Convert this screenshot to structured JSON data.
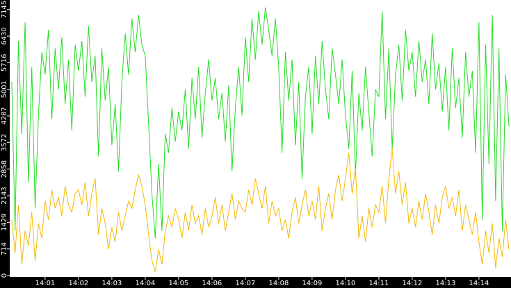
{
  "chart_data": {
    "type": "line",
    "x": [
      0,
      0.1,
      0.2,
      0.3,
      0.4,
      0.5,
      0.6,
      0.7,
      0.8,
      0.9,
      1,
      1.1,
      1.2,
      1.3,
      1.4,
      1.5,
      1.6,
      1.7,
      1.8,
      1.9,
      2,
      2.1,
      2.2,
      2.3,
      2.4,
      2.5,
      2.6,
      2.7,
      2.8,
      2.9,
      3,
      3.1,
      3.2,
      3.3,
      3.4,
      3.5,
      3.6,
      3.7,
      3.8,
      3.9,
      4,
      4.1,
      4.2,
      4.3,
      4.4,
      4.5,
      4.6,
      4.7,
      4.8,
      4.9,
      5,
      5.1,
      5.2,
      5.3,
      5.4,
      5.5,
      5.6,
      5.7,
      5.8,
      5.9,
      6,
      6.1,
      6.2,
      6.3,
      6.4,
      6.5,
      6.6,
      6.7,
      6.8,
      6.9,
      7,
      7.1,
      7.2,
      7.3,
      7.4,
      7.5,
      7.6,
      7.7,
      7.8,
      7.9,
      8,
      8.1,
      8.2,
      8.3,
      8.4,
      8.5,
      8.6,
      8.7,
      8.8,
      8.9,
      9,
      9.1,
      9.2,
      9.3,
      9.4,
      9.5,
      9.6,
      9.7,
      9.8,
      9.9,
      10,
      10.1,
      10.2,
      10.3,
      10.4,
      10.5,
      10.6,
      10.7,
      10.8,
      10.9,
      11,
      11.1,
      11.2,
      11.3,
      11.4,
      11.5,
      11.6,
      11.7,
      11.8,
      11.9,
      12,
      12.1,
      12.2,
      12.3,
      12.4,
      12.5,
      12.6,
      12.7,
      12.8,
      12.9,
      13,
      13.1,
      13.2,
      13.3,
      13.4,
      13.5,
      13.6,
      13.7,
      13.8,
      13.9,
      14,
      14.1,
      14.2,
      14.3,
      14.4,
      14.5,
      14.6,
      14.7,
      14.8,
      14.9
    ],
    "series": [
      {
        "color": "#22dd22",
        "values": [
          5200,
          1200,
          6300,
          3800,
          6800,
          2500,
          5600,
          1800,
          4300,
          6000,
          5400,
          6600,
          4200,
          6100,
          5000,
          6400,
          4600,
          5800,
          3900,
          6200,
          5500,
          6300,
          4800,
          6700,
          5200,
          5900,
          3200,
          6100,
          4700,
          5600,
          3500,
          4600,
          2800,
          5200,
          6500,
          5400,
          6900,
          6000,
          7000,
          6200,
          5900,
          4100,
          2200,
          1000,
          3000,
          1200,
          3800,
          3300,
          4500,
          3600,
          4400,
          3900,
          5000,
          3400,
          5300,
          4200,
          5600,
          3700,
          4900,
          5800,
          4700,
          5300,
          4200,
          4900,
          3600,
          5100,
          2800,
          4500,
          5600,
          4300,
          6400,
          5200,
          6900,
          5800,
          7100,
          6200,
          7200,
          6600,
          5900,
          6900,
          5600,
          3300,
          6000,
          4700,
          5800,
          3500,
          5200,
          2600,
          4800,
          5600,
          3800,
          5900,
          4600,
          6300,
          5000,
          4200,
          6100,
          5400,
          4600,
          5800,
          4300,
          3400,
          5500,
          2700,
          4900,
          3900,
          5600,
          4400,
          3200,
          5000,
          4800,
          7100,
          4200,
          6100,
          3400,
          5400,
          6200,
          4700,
          6600,
          5500,
          6000,
          4800,
          6300,
          5200,
          5800,
          4600,
          6500,
          5000,
          5700,
          4400,
          5600,
          3900,
          6100,
          4500,
          5300,
          3700,
          6000,
          4800,
          5500,
          3300,
          6800,
          1500,
          6200,
          3000,
          7000,
          2000,
          6100,
          1200,
          5400,
          4000
        ]
      },
      {
        "color": "#f5b800",
        "values": [
          1500,
          600,
          1900,
          300,
          1200,
          800,
          1700,
          400,
          1400,
          1000,
          2000,
          1500,
          2300,
          1800,
          2100,
          1600,
          2400,
          1900,
          1700,
          2200,
          2300,
          1900,
          2500,
          1600,
          2200,
          2600,
          1100,
          1800,
          1400,
          700,
          1300,
          900,
          1700,
          1200,
          1600,
          2000,
          1800,
          2300,
          2700,
          2400,
          1900,
          1100,
          400,
          100,
          700,
          300,
          1200,
          1600,
          1300,
          1800,
          1500,
          1000,
          1700,
          1200,
          1900,
          1400,
          1600,
          1100,
          1800,
          1300,
          1600,
          2100,
          1400,
          1900,
          1200,
          1700,
          2200,
          1500,
          2000,
          1800,
          1700,
          2300,
          1900,
          2600,
          2200,
          1800,
          2400,
          1400,
          2000,
          1600,
          1800,
          1200,
          1500,
          1000,
          1700,
          2100,
          1400,
          1900,
          2300,
          1600,
          2000,
          1500,
          2400,
          1200,
          1800,
          2200,
          1500,
          2300,
          2700,
          2000,
          2600,
          3300,
          2200,
          2900,
          1000,
          1600,
          900,
          1800,
          1300,
          1900,
          1700,
          2400,
          1400,
          2600,
          3400,
          2200,
          2800,
          1900,
          2500,
          1400,
          1800,
          1300,
          2000,
          1500,
          2200,
          1700,
          1100,
          1900,
          1400,
          2100,
          2400,
          1800,
          2100,
          1600,
          2300,
          1200,
          1900,
          1500,
          1100,
          1700,
          900,
          300,
          1200,
          600,
          1400,
          200,
          1000,
          500,
          1500,
          700
        ]
      }
    ],
    "xlim": [
      -0.06,
      14.96
    ],
    "xticks": [
      {
        "value": 1,
        "label": "14:01"
      },
      {
        "value": 2,
        "label": "14:02"
      },
      {
        "value": 3,
        "label": "14:03"
      },
      {
        "value": 4,
        "label": "14:04"
      },
      {
        "value": 5,
        "label": "14:05"
      },
      {
        "value": 6,
        "label": "14:06"
      },
      {
        "value": 7,
        "label": "14:07"
      },
      {
        "value": 8,
        "label": "14:08"
      },
      {
        "value": 9,
        "label": "14:09"
      },
      {
        "value": 10,
        "label": "14:10"
      },
      {
        "value": 11,
        "label": "14:11"
      },
      {
        "value": 12,
        "label": "14:12"
      },
      {
        "value": 13,
        "label": "14:13"
      },
      {
        "value": 14,
        "label": "14:14"
      }
    ],
    "ylim": [
      0,
      7400
    ],
    "yticks": [
      0,
      714,
      1429,
      2143,
      2858,
      3572,
      4287,
      5001,
      5716,
      6430,
      7145
    ]
  }
}
